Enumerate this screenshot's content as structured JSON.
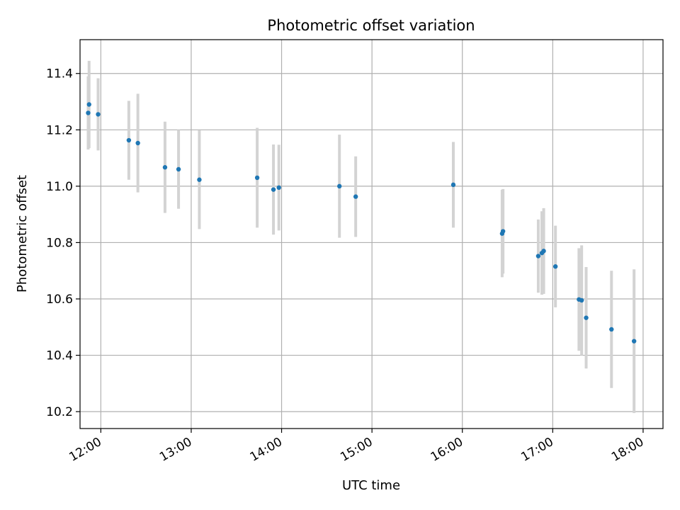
{
  "chart_data": {
    "type": "scatter",
    "title": "Photometric offset variation",
    "xlabel": "UTC time",
    "ylabel": "Photometric offset",
    "x_unit": "hours (UTC)",
    "xlim": [
      11.77,
      18.22
    ],
    "ylim": [
      10.14,
      11.52
    ],
    "x_ticks": [
      {
        "value": 12,
        "label": "12:00"
      },
      {
        "value": 13,
        "label": "13:00"
      },
      {
        "value": 14,
        "label": "14:00"
      },
      {
        "value": 15,
        "label": "15:00"
      },
      {
        "value": 16,
        "label": "16:00"
      },
      {
        "value": 17,
        "label": "17:00"
      },
      {
        "value": 18,
        "label": "18:00"
      }
    ],
    "y_ticks": [
      {
        "value": 10.2,
        "label": "10.2"
      },
      {
        "value": 10.4,
        "label": "10.4"
      },
      {
        "value": 10.6,
        "label": "10.6"
      },
      {
        "value": 10.8,
        "label": "10.8"
      },
      {
        "value": 11.0,
        "label": "11.0"
      },
      {
        "value": 11.2,
        "label": "11.2"
      },
      {
        "value": 11.4,
        "label": "11.4"
      }
    ],
    "grid": true,
    "marker_color": "#1f77b4",
    "errorbar_color": "#d3d3d3",
    "points": [
      {
        "x": 11.87,
        "y": 11.29,
        "err": 0.155
      },
      {
        "x": 11.86,
        "y": 11.26,
        "err": 0.13
      },
      {
        "x": 11.97,
        "y": 11.255,
        "err": 0.128
      },
      {
        "x": 12.31,
        "y": 11.163,
        "err": 0.14
      },
      {
        "x": 12.41,
        "y": 11.153,
        "err": 0.175
      },
      {
        "x": 12.71,
        "y": 11.067,
        "err": 0.162
      },
      {
        "x": 12.86,
        "y": 11.06,
        "err": 0.14
      },
      {
        "x": 13.09,
        "y": 11.023,
        "err": 0.175
      },
      {
        "x": 13.73,
        "y": 11.03,
        "err": 0.177
      },
      {
        "x": 13.91,
        "y": 10.988,
        "err": 0.16
      },
      {
        "x": 13.97,
        "y": 10.995,
        "err": 0.152
      },
      {
        "x": 14.64,
        "y": 11.0,
        "err": 0.183
      },
      {
        "x": 14.82,
        "y": 10.963,
        "err": 0.143
      },
      {
        "x": 15.9,
        "y": 11.005,
        "err": 0.152
      },
      {
        "x": 16.44,
        "y": 10.832,
        "err": 0.155
      },
      {
        "x": 16.45,
        "y": 10.84,
        "err": 0.15
      },
      {
        "x": 16.84,
        "y": 10.752,
        "err": 0.13
      },
      {
        "x": 16.88,
        "y": 10.763,
        "err": 0.148
      },
      {
        "x": 16.9,
        "y": 10.77,
        "err": 0.152
      },
      {
        "x": 17.03,
        "y": 10.715,
        "err": 0.145
      },
      {
        "x": 17.29,
        "y": 10.598,
        "err": 0.182
      },
      {
        "x": 17.32,
        "y": 10.595,
        "err": 0.195
      },
      {
        "x": 17.37,
        "y": 10.533,
        "err": 0.18
      },
      {
        "x": 17.65,
        "y": 10.492,
        "err": 0.208
      },
      {
        "x": 17.9,
        "y": 10.45,
        "err": 0.255
      }
    ]
  }
}
